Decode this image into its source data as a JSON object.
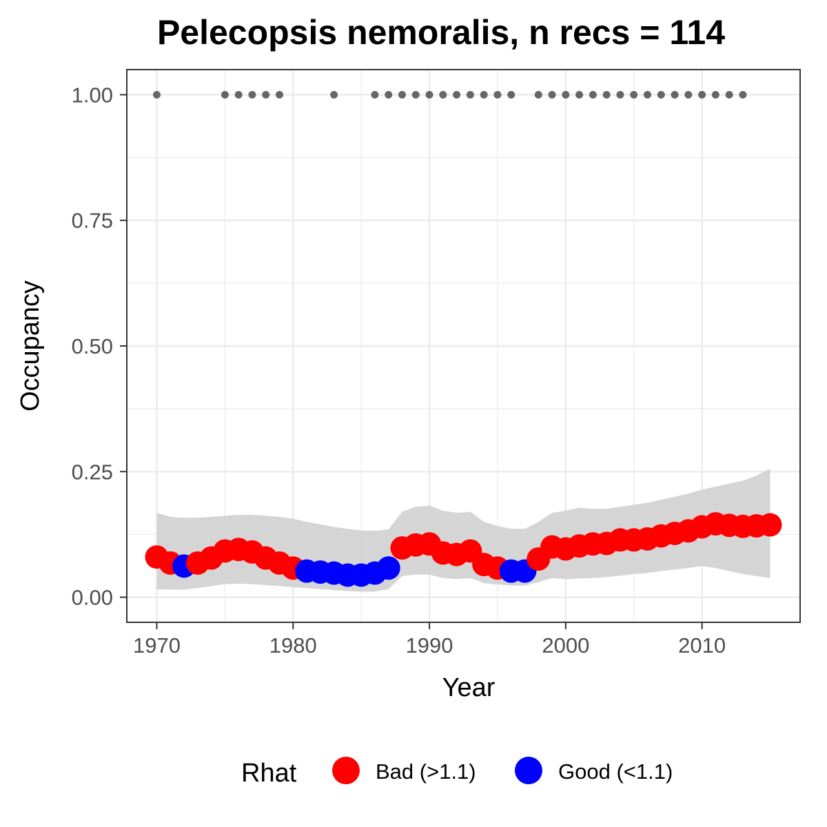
{
  "chart_data": {
    "type": "line",
    "title": "Pelecopsis nemoralis, n recs = 114",
    "xlabel": "Year",
    "ylabel": "Occupancy",
    "xlim": [
      1967.8,
      2017.2
    ],
    "ylim": [
      -0.05,
      1.05
    ],
    "x_ticks": [
      1970,
      1980,
      1990,
      2000,
      2010
    ],
    "x_tick_labels": [
      "1970",
      "1980",
      "1990",
      "2000",
      "2010"
    ],
    "y_ticks": [
      0,
      0.25,
      0.5,
      0.75,
      1.0
    ],
    "y_tick_labels": [
      "0.00",
      "0.25",
      "0.50",
      "0.75",
      "1.00"
    ],
    "grid": true,
    "legend": {
      "title": "Rhat",
      "position": "bottom",
      "entries": [
        {
          "label": "Bad (>1.1)",
          "color": "#ff0000"
        },
        {
          "label": "Good (<1.1)",
          "color": "#0000ff"
        }
      ]
    },
    "colors": {
      "bad": "#ff0000",
      "good": "#0000ff",
      "ribbon": "#d3d3d3",
      "records": "#666666"
    },
    "years": [
      1970,
      1971,
      1972,
      1973,
      1974,
      1975,
      1976,
      1977,
      1978,
      1979,
      1980,
      1981,
      1982,
      1983,
      1984,
      1985,
      1986,
      1987,
      1988,
      1989,
      1990,
      1991,
      1992,
      1993,
      1994,
      1995,
      1996,
      1997,
      1998,
      1999,
      2000,
      2001,
      2002,
      2003,
      2004,
      2005,
      2006,
      2007,
      2008,
      2009,
      2010,
      2011,
      2012,
      2013,
      2014,
      2015
    ],
    "occupancy": [
      0.08,
      0.068,
      0.062,
      0.068,
      0.078,
      0.092,
      0.095,
      0.09,
      0.078,
      0.068,
      0.058,
      0.052,
      0.05,
      0.048,
      0.044,
      0.044,
      0.048,
      0.058,
      0.098,
      0.104,
      0.106,
      0.088,
      0.085,
      0.092,
      0.065,
      0.058,
      0.052,
      0.052,
      0.076,
      0.1,
      0.096,
      0.102,
      0.106,
      0.107,
      0.114,
      0.114,
      0.116,
      0.122,
      0.127,
      0.132,
      0.14,
      0.146,
      0.143,
      0.141,
      0.142,
      0.144
    ],
    "rhat_status": [
      "bad",
      "bad",
      "good",
      "bad",
      "bad",
      "bad",
      "bad",
      "bad",
      "bad",
      "bad",
      "bad",
      "good",
      "good",
      "good",
      "good",
      "good",
      "good",
      "good",
      "bad",
      "bad",
      "bad",
      "bad",
      "bad",
      "bad",
      "bad",
      "bad",
      "good",
      "good",
      "bad",
      "bad",
      "bad",
      "bad",
      "bad",
      "bad",
      "bad",
      "bad",
      "bad",
      "bad",
      "bad",
      "bad",
      "bad",
      "bad",
      "bad",
      "bad",
      "bad",
      "bad"
    ],
    "lower_ci": [
      0.016,
      0.015,
      0.015,
      0.018,
      0.022,
      0.026,
      0.027,
      0.026,
      0.024,
      0.022,
      0.02,
      0.018,
      0.016,
      0.014,
      0.012,
      0.011,
      0.011,
      0.016,
      0.042,
      0.045,
      0.045,
      0.038,
      0.036,
      0.038,
      0.028,
      0.025,
      0.023,
      0.023,
      0.03,
      0.038,
      0.036,
      0.037,
      0.038,
      0.04,
      0.043,
      0.046,
      0.048,
      0.052,
      0.055,
      0.058,
      0.062,
      0.058,
      0.052,
      0.046,
      0.042,
      0.038
    ],
    "upper_ci": [
      0.168,
      0.16,
      0.158,
      0.158,
      0.16,
      0.162,
      0.164,
      0.164,
      0.162,
      0.16,
      0.156,
      0.15,
      0.145,
      0.14,
      0.136,
      0.133,
      0.132,
      0.135,
      0.17,
      0.18,
      0.182,
      0.172,
      0.168,
      0.17,
      0.15,
      0.142,
      0.136,
      0.136,
      0.15,
      0.168,
      0.172,
      0.178,
      0.176,
      0.176,
      0.18,
      0.184,
      0.188,
      0.194,
      0.2,
      0.206,
      0.214,
      0.22,
      0.226,
      0.232,
      0.242,
      0.256
    ],
    "record_years": [
      1970,
      1975,
      1976,
      1977,
      1978,
      1979,
      1983,
      1986,
      1987,
      1988,
      1989,
      1990,
      1991,
      1992,
      1993,
      1994,
      1995,
      1996,
      1998,
      1999,
      2000,
      2001,
      2002,
      2003,
      2004,
      2005,
      2006,
      2007,
      2008,
      2009,
      2010,
      2011,
      2012,
      2013
    ],
    "record_value": 1.0
  }
}
